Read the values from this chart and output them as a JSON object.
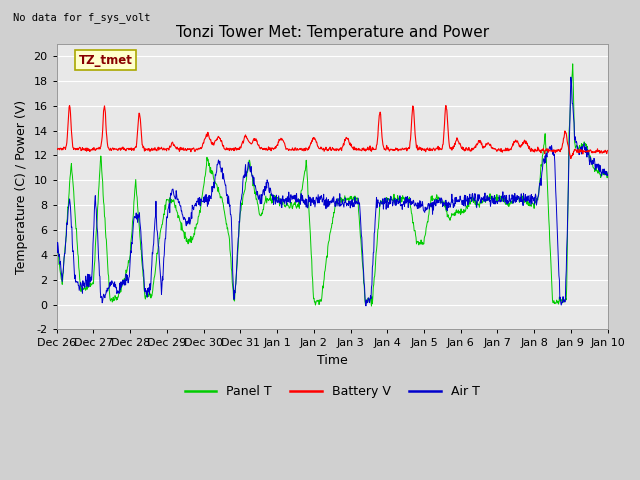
{
  "title": "Tonzi Tower Met: Temperature and Power",
  "top_left_text": "No data for f_sys_volt",
  "xlabel": "Time",
  "ylabel": "Temperature (C) / Power (V)",
  "ylim": [
    -2,
    21
  ],
  "yticks": [
    -2,
    0,
    2,
    4,
    6,
    8,
    10,
    12,
    14,
    16,
    18,
    20
  ],
  "x_tick_labels": [
    "Dec 26",
    "Dec 27",
    "Dec 28",
    "Dec 29",
    "Dec 30",
    "Dec 31",
    "Jan 1",
    "Jan 2",
    "Jan 3",
    "Jan 4",
    "Jan 5",
    "Jan 6",
    "Jan 7",
    "Jan 8",
    "Jan 9",
    "Jan 10"
  ],
  "annotation_label": "TZ_tmet",
  "legend_colors": [
    "#00cc00",
    "#ff0000",
    "#0000cc"
  ],
  "bg_color": "#e8e8e8",
  "grid_color": "#ffffff",
  "title_fontsize": 11,
  "axis_fontsize": 9,
  "tick_fontsize": 8,
  "panel_color": "#00dd00",
  "battery_color": "#ff0000",
  "air_color": "#0000cc"
}
